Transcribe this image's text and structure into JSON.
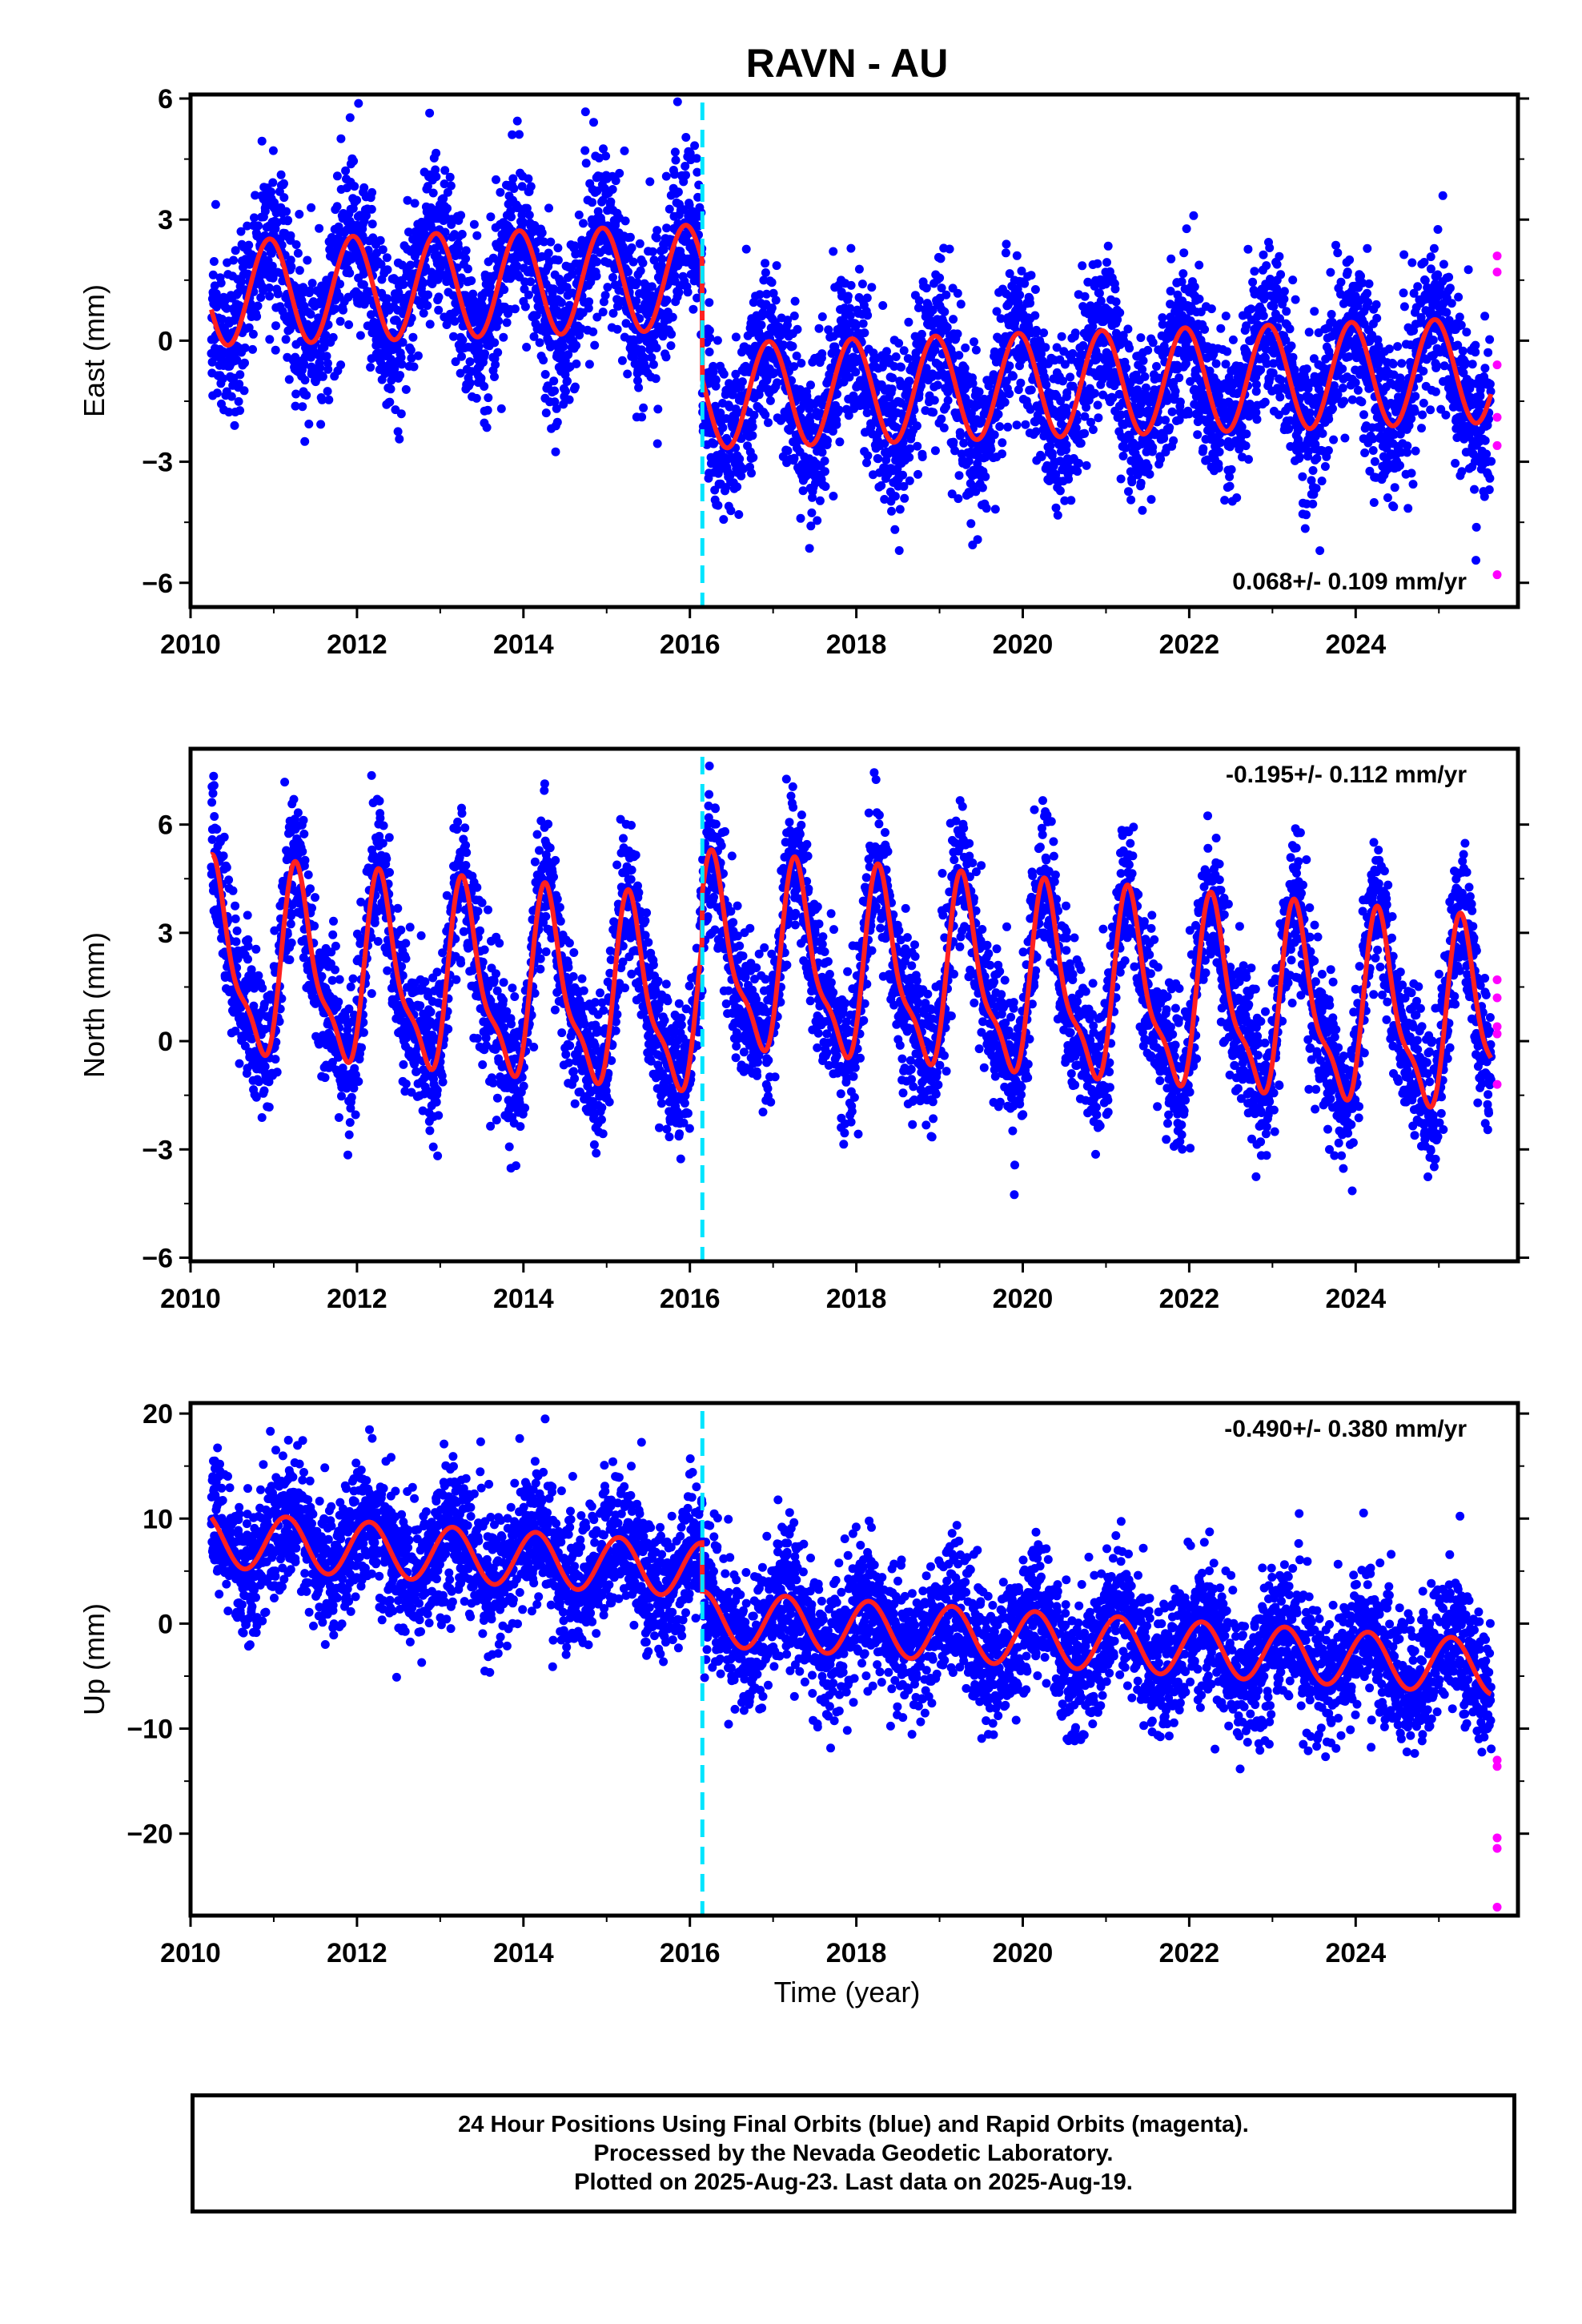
{
  "title": "RAVN - AU",
  "xlabel": "Time (year)",
  "footer": {
    "line1": "24 Hour Positions Using Final Orbits (blue) and Rapid Orbits (magenta).",
    "line2": "Processed by the Nevada Geodetic Laboratory.",
    "line3": "Plotted on 2025-Aug-23. Last data on 2025-Aug-19."
  },
  "colors": {
    "final": "#0000ff",
    "rapid": "#ff00ff",
    "model": "#ff2020",
    "step": "#00e5ff"
  },
  "chart_data": [
    {
      "type": "scatter",
      "ylabel": "East (mm)",
      "rate_label": "0.068+/- 0.109 mm/yr",
      "xlim": [
        2010,
        2025.95
      ],
      "ylim": [
        -6.6,
        6.1
      ],
      "yticks": [
        6,
        3,
        0,
        -3,
        -6
      ],
      "ytick_labels": [
        "6",
        "3",
        "0",
        "−3",
        "−6"
      ],
      "xticks": [
        2010,
        2012,
        2014,
        2016,
        2018,
        2020,
        2022,
        2024
      ],
      "xtick_labels": [
        "2010",
        "2012",
        "2014",
        "2016",
        "2018",
        "2020",
        "2022",
        "2024"
      ],
      "data_start": 2010.25,
      "data_end": 2025.63,
      "step_epoch": 2016.15,
      "model": {
        "offset_before": 1.7,
        "offset_after": -1.25,
        "trend": 0.068,
        "amplitude": 1.3,
        "phase": 0.95,
        "semiannual": 0.0
      },
      "scatter_sd": 1.0,
      "rapid_points": [
        {
          "x": 2025.7,
          "y": 2.1
        },
        {
          "x": 2025.7,
          "y": 1.7
        },
        {
          "x": 2025.7,
          "y": -0.6
        },
        {
          "x": 2025.7,
          "y": -1.9
        },
        {
          "x": 2025.7,
          "y": -2.6
        },
        {
          "x": 2025.7,
          "y": -5.8
        }
      ]
    },
    {
      "type": "scatter",
      "ylabel": "North (mm)",
      "rate_label": "-0.195+/- 0.112 mm/yr",
      "xlim": [
        2010,
        2025.95
      ],
      "ylim": [
        -6.1,
        8.1
      ],
      "yticks": [
        6,
        3,
        0,
        -3,
        -6
      ],
      "ytick_labels": [
        "6",
        "3",
        "0",
        "−3",
        "−6"
      ],
      "xticks": [
        2010,
        2012,
        2014,
        2016,
        2018,
        2020,
        2022,
        2024
      ],
      "xtick_labels": [
        "2010",
        "2012",
        "2014",
        "2016",
        "2018",
        "2020",
        "2022",
        "2024"
      ],
      "data_start": 2010.25,
      "data_end": 2025.63,
      "step_epoch": 2016.15,
      "model": {
        "offset_before": 0.6,
        "offset_after": 1.9,
        "trend": -0.195,
        "amplitude": 2.4,
        "phase": 0.3,
        "semiannual": 0.8
      },
      "scatter_sd": 1.0,
      "rapid_points": [
        {
          "x": 2025.7,
          "y": 1.7
        },
        {
          "x": 2025.7,
          "y": 1.2
        },
        {
          "x": 2025.7,
          "y": 0.4
        },
        {
          "x": 2025.7,
          "y": 0.2
        },
        {
          "x": 2025.7,
          "y": -1.2
        }
      ]
    },
    {
      "type": "scatter",
      "ylabel": "Up (mm)",
      "rate_label": "-0.490+/- 0.380 mm/yr",
      "xlim": [
        2010,
        2025.95
      ],
      "ylim": [
        -27.8,
        21
      ],
      "yticks": [
        20,
        10,
        0,
        -10,
        -20
      ],
      "ytick_labels": [
        "20",
        "10",
        "0",
        "−10",
        "−20"
      ],
      "xticks": [
        2010,
        2012,
        2014,
        2016,
        2018,
        2020,
        2022,
        2024
      ],
      "xtick_labels": [
        "2010",
        "2012",
        "2014",
        "2016",
        "2018",
        "2020",
        "2022",
        "2024"
      ],
      "data_start": 2010.25,
      "data_end": 2025.63,
      "step_epoch": 2016.15,
      "model": {
        "offset_before": 4.2,
        "offset_after": -0.4,
        "trend": -0.49,
        "amplitude": 2.6,
        "phase": 0.15,
        "semiannual": 0.0
      },
      "scatter_sd": 3.2,
      "rapid_points": [
        {
          "x": 2025.7,
          "y": -13
        },
        {
          "x": 2025.7,
          "y": -13.6
        },
        {
          "x": 2025.7,
          "y": -20.4
        },
        {
          "x": 2025.7,
          "y": -21.4
        },
        {
          "x": 2025.7,
          "y": -27
        }
      ]
    }
  ]
}
